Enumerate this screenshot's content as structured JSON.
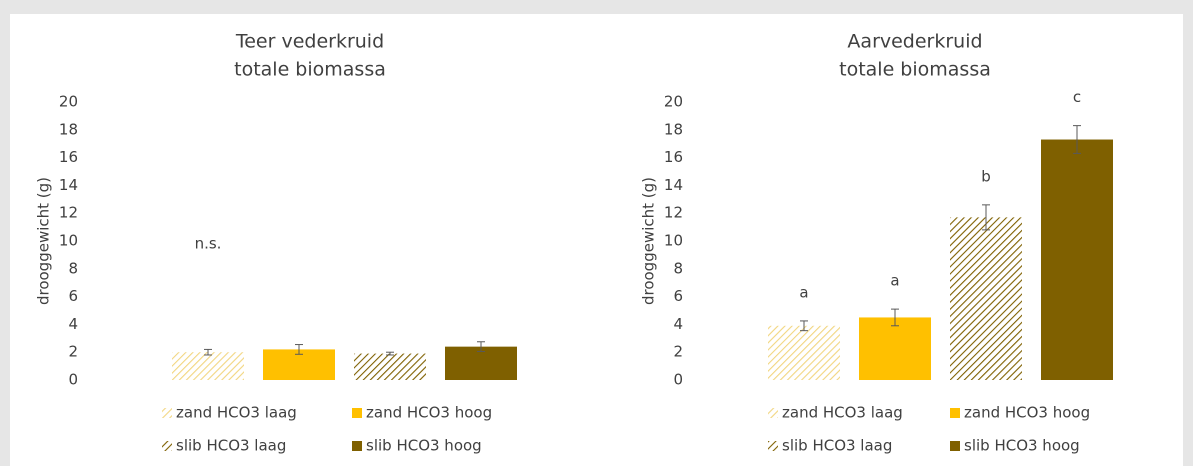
{
  "chart_data": [
    {
      "type": "bar",
      "title": "Teer vederkruid",
      "subtitle": "totale biomassa",
      "y_label": "drooggewicht (g)",
      "ylim": [
        0,
        20
      ],
      "yticks": [
        0,
        2,
        4,
        6,
        8,
        10,
        12,
        14,
        16,
        18,
        20
      ],
      "grid": false,
      "annotation": "n.s.",
      "series": [
        {
          "name": "zand HCO3 laag",
          "color": "#f2d680",
          "hatch": true,
          "values": [
            2.0
          ],
          "errors": [
            0.2
          ]
        },
        {
          "name": "zand HCO3 hoog",
          "color": "#ffc000",
          "hatch": false,
          "values": [
            2.2
          ],
          "errors": [
            0.35
          ]
        },
        {
          "name": "slib HCO3 laag",
          "color": "#7f6000",
          "hatch": true,
          "values": [
            1.9
          ],
          "errors": [
            0.1
          ]
        },
        {
          "name": "slib HCO3 hoog",
          "color": "#7f6000",
          "hatch": false,
          "values": [
            2.4
          ],
          "errors": [
            0.35
          ]
        }
      ]
    },
    {
      "type": "bar",
      "title": "Aarvederkruid",
      "subtitle": "totale biomassa",
      "y_label": "drooggewicht (g)",
      "ylim": [
        0,
        20
      ],
      "yticks": [
        0,
        2,
        4,
        6,
        8,
        10,
        12,
        14,
        16,
        18,
        20
      ],
      "grid": false,
      "series": [
        {
          "name": "zand HCO3 laag",
          "color": "#f2d680",
          "hatch": true,
          "values": [
            3.9
          ],
          "errors": [
            0.35
          ],
          "label": "a"
        },
        {
          "name": "zand HCO3 hoog",
          "color": "#ffc000",
          "hatch": false,
          "values": [
            4.5
          ],
          "errors": [
            0.6
          ],
          "label": "a"
        },
        {
          "name": "slib HCO3 laag",
          "color": "#7f6000",
          "hatch": true,
          "values": [
            11.7
          ],
          "errors": [
            0.9
          ],
          "label": "b"
        },
        {
          "name": "slib HCO3 hoog",
          "color": "#7f6000",
          "hatch": false,
          "values": [
            17.3
          ],
          "errors": [
            1.0
          ],
          "label": "c"
        }
      ]
    }
  ]
}
